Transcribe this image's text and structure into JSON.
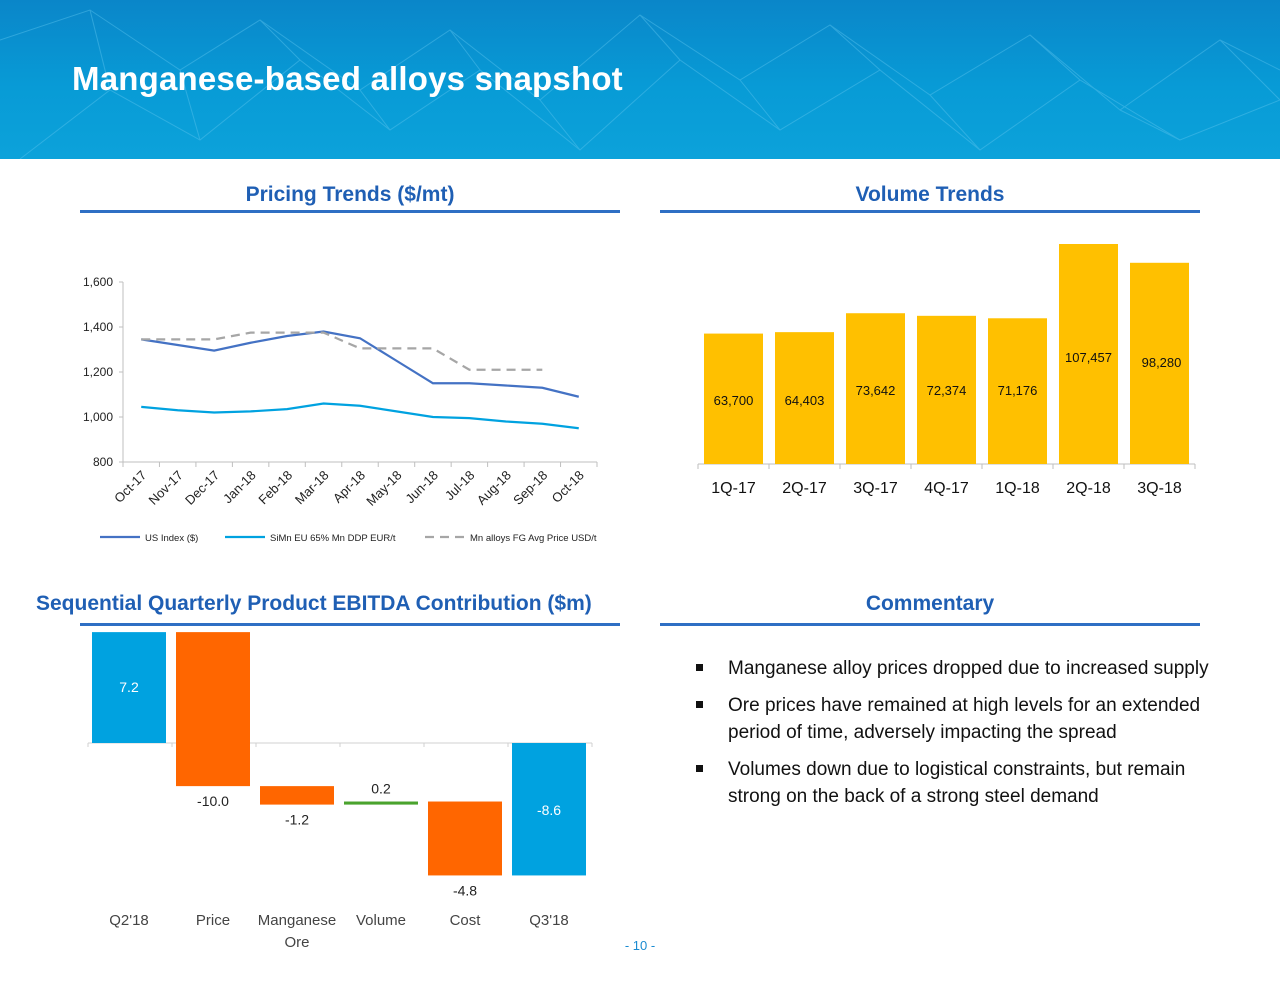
{
  "header": {
    "title": "Manganese-based alloys snapshot"
  },
  "sections": {
    "pricing": "Pricing Trends ($/mt)",
    "volume": "Volume Trends",
    "ebitda": "Sequential Quarterly Product EBITDA Contribution ($m)",
    "commentary": "Commentary"
  },
  "commentary": {
    "bullets": [
      "Manganese alloy prices dropped due to increased supply",
      "Ore prices have remained at high levels for an extended period of time, adversely impacting the spread",
      "Volumes down due to logistical constraints, but remain strong on the back of a strong steel demand"
    ]
  },
  "footer": {
    "page": "- 10 -"
  },
  "colors": {
    "banner": "#0a9ad6",
    "heading": "#1f5fb4",
    "gold": "#ffc000",
    "orange": "#ff6600",
    "blue": "#00a2e0",
    "green": "#4aa32d",
    "usIndex": "#4472c4",
    "simn": "#00a2e0",
    "mnAlloys": "#a6a6a6"
  },
  "chart_data": [
    {
      "type": "line",
      "title": "Pricing Trends ($/mt)",
      "categories": [
        "Oct-17",
        "Nov-17",
        "Dec-17",
        "Jan-18",
        "Feb-18",
        "Mar-18",
        "Apr-18",
        "May-18",
        "Jun-18",
        "Jul-18",
        "Aug-18",
        "Sep-18",
        "Oct-18"
      ],
      "ylim": [
        800,
        1600
      ],
      "yticks": [
        "1,600",
        "1,400",
        "1,200",
        "1,000",
        "800"
      ],
      "legend_position": "bottom",
      "series": [
        {
          "name": "US Index ($)",
          "style": "solid",
          "values": [
            1345,
            1320,
            1295,
            1330,
            1360,
            1380,
            1350,
            1250,
            1150,
            1150,
            1140,
            1130,
            1090
          ]
        },
        {
          "name": "SiMn EU 65% Mn DDP EUR/t",
          "style": "solid",
          "values": [
            1045,
            1030,
            1020,
            1025,
            1035,
            1060,
            1050,
            1025,
            1000,
            995,
            980,
            970,
            950
          ]
        },
        {
          "name": "Mn alloys FG Avg Price USD/t",
          "style": "dashed",
          "values": [
            1345,
            1345,
            1345,
            1375,
            1375,
            1375,
            1305,
            1305,
            1305,
            1210,
            1210,
            1210,
            null
          ]
        }
      ]
    },
    {
      "type": "bar",
      "title": "Volume Trends",
      "categories": [
        "1Q-17",
        "2Q-17",
        "3Q-17",
        "4Q-17",
        "1Q-18",
        "2Q-18",
        "3Q-18"
      ],
      "values": [
        63700,
        64403,
        73642,
        72374,
        71176,
        107457,
        98280
      ],
      "labels": [
        "63,700",
        "64,403",
        "73,642",
        "72,374",
        "71,176",
        "107,457",
        "98,280"
      ]
    },
    {
      "type": "bar",
      "subtype": "waterfall",
      "title": "Sequential Quarterly Product EBITDA Contribution ($m)",
      "categories": [
        "Q2'18",
        "Price",
        "Manganese Ore",
        "Volume",
        "Cost",
        "Q3'18"
      ],
      "values": [
        7.2,
        -10.0,
        -1.2,
        0.2,
        -4.8,
        -8.6
      ],
      "labels": [
        "7.2",
        "-10.0",
        "-1.2",
        "0.2",
        "-4.8",
        "-8.6"
      ],
      "kinds": [
        "total",
        "delta",
        "delta",
        "delta",
        "delta",
        "total"
      ]
    }
  ]
}
